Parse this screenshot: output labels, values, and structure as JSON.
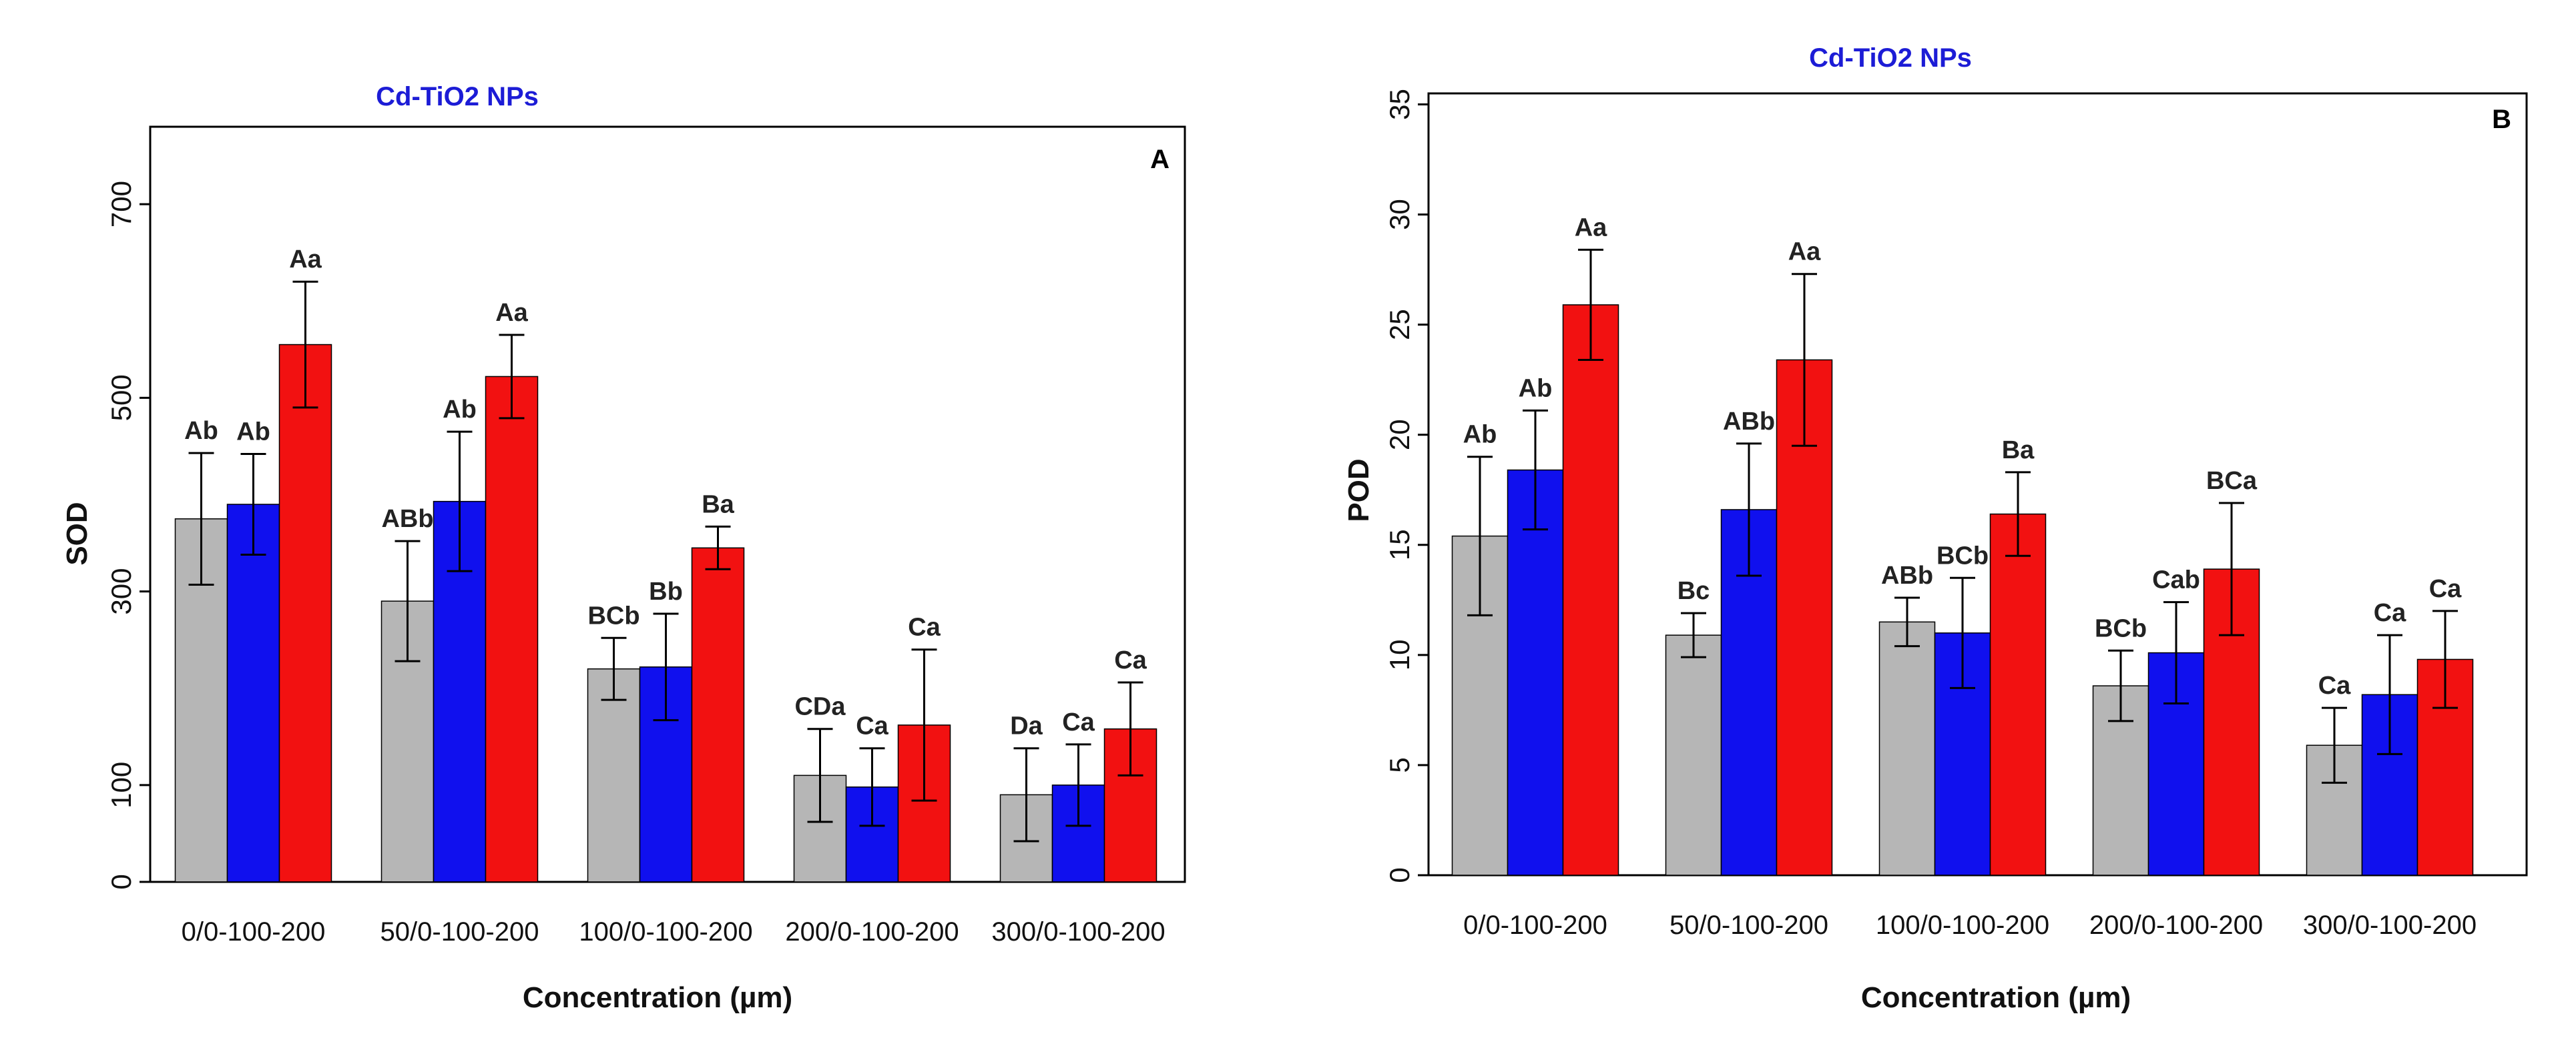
{
  "colors": {
    "series": [
      "#b6b6b6",
      "#1010ee",
      "#f21111"
    ],
    "title": "#1c1cd6"
  },
  "chart_data": [
    {
      "type": "bar",
      "title": "Cd-TiO2 NPs",
      "panel_letter": "A",
      "xlabel": "Concentration (µm)",
      "ylabel": "SOD",
      "ylim": [
        0,
        780
      ],
      "yticks": [
        0,
        100,
        300,
        500,
        700
      ],
      "categories": [
        "0/0-100-200",
        "50/0-100-200",
        "100/0-100-200",
        "200/0-100-200",
        "300/0-100-200"
      ],
      "series": [
        {
          "name": "0",
          "values": [
            375,
            290,
            220,
            110,
            90
          ],
          "errors": [
            68,
            62,
            32,
            48,
            48
          ],
          "labels": [
            "Ab",
            "ABb",
            "BCb",
            "CDa",
            "Da"
          ]
        },
        {
          "name": "100",
          "values": [
            390,
            393,
            222,
            98,
            100
          ],
          "errors": [
            52,
            72,
            55,
            40,
            42
          ],
          "labels": [
            "Ab",
            "Ab",
            "Bb",
            "Ca",
            "Ca"
          ]
        },
        {
          "name": "200",
          "values": [
            555,
            522,
            345,
            162,
            158
          ],
          "errors": [
            65,
            43,
            22,
            78,
            48
          ],
          "labels": [
            "Aa",
            "Aa",
            "Ba",
            "Ca",
            "Ca"
          ]
        }
      ]
    },
    {
      "type": "bar",
      "title": "Cd-TiO2 NPs",
      "panel_letter": "B",
      "xlabel": "Concentration (µm)",
      "ylabel": "POD",
      "ylim": [
        0,
        35.5
      ],
      "yticks": [
        0,
        5,
        10,
        15,
        20,
        25,
        30,
        35
      ],
      "categories": [
        "0/0-100-200",
        "50/0-100-200",
        "100/0-100-200",
        "200/0-100-200",
        "300/0-100-200"
      ],
      "series": [
        {
          "name": "0",
          "values": [
            15.4,
            10.9,
            11.5,
            8.6,
            5.9
          ],
          "errors": [
            3.6,
            1.0,
            1.1,
            1.6,
            1.7
          ],
          "labels": [
            "Ab",
            "Bc",
            "ABb",
            "BCb",
            "Ca"
          ]
        },
        {
          "name": "100",
          "values": [
            18.4,
            16.6,
            11.0,
            10.1,
            8.2
          ],
          "errors": [
            2.7,
            3.0,
            2.5,
            2.3,
            2.7
          ],
          "labels": [
            "Ab",
            "ABb",
            "BCb",
            "Cab",
            "Ca"
          ]
        },
        {
          "name": "200",
          "values": [
            25.9,
            23.4,
            16.4,
            13.9,
            9.8
          ],
          "errors": [
            2.5,
            3.9,
            1.9,
            3.0,
            2.2
          ],
          "labels": [
            "Aa",
            "Aa",
            "Ba",
            "BCa",
            "Ca"
          ]
        }
      ]
    }
  ]
}
